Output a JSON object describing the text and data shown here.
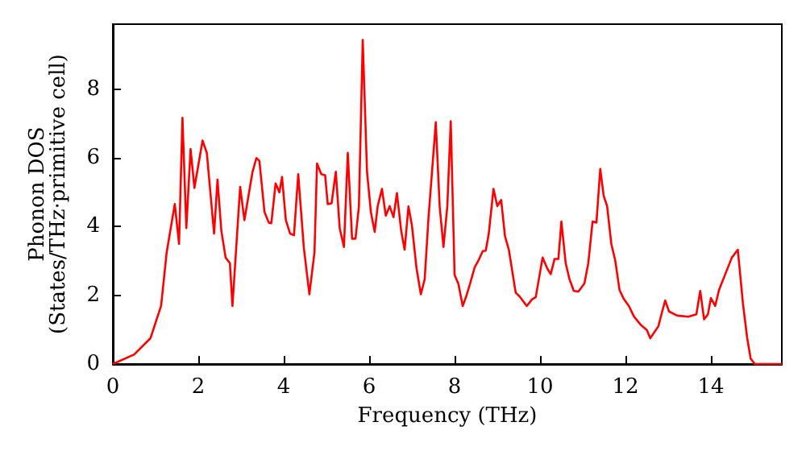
{
  "chart_data": {
    "type": "line",
    "xlabel": "Frequency (THz)",
    "ylabel": "Phonon DOS\n(States/THz·primitive cell)",
    "x": [
      0,
      0.5,
      0.88,
      1.13,
      1.26,
      1.45,
      1.55,
      1.63,
      1.72,
      1.82,
      1.91,
      2.1,
      2.2,
      2.37,
      2.45,
      2.54,
      2.64,
      2.74,
      2.8,
      2.98,
      3.08,
      3.27,
      3.36,
      3.43,
      3.55,
      3.65,
      3.71,
      3.81,
      3.9,
      3.96,
      4.05,
      4.15,
      4.24,
      4.34,
      4.47,
      4.6,
      4.72,
      4.78,
      4.88,
      4.97,
      5.03,
      5.12,
      5.22,
      5.31,
      5.41,
      5.5,
      5.6,
      5.68,
      5.76,
      5.85,
      5.95,
      6.04,
      6.13,
      6.2,
      6.3,
      6.39,
      6.48,
      6.57,
      6.65,
      6.75,
      6.83,
      6.92,
      7.0,
      7.11,
      7.21,
      7.3,
      7.39,
      7.56,
      7.65,
      7.74,
      7.83,
      7.91,
      8.0,
      8.09,
      8.19,
      8.28,
      8.36,
      8.47,
      8.56,
      8.66,
      8.73,
      8.8,
      8.91,
      9.0,
      9.09,
      9.18,
      9.27,
      9.43,
      9.52,
      9.69,
      9.81,
      9.9,
      10.06,
      10.17,
      10.25,
      10.34,
      10.43,
      10.5,
      10.6,
      10.69,
      10.79,
      10.9,
      11.04,
      11.13,
      11.23,
      11.32,
      11.41,
      11.49,
      11.57,
      11.67,
      11.76,
      11.86,
      11.95,
      12.08,
      12.2,
      12.36,
      12.5,
      12.58,
      12.77,
      12.86,
      12.93,
      13.02,
      13.21,
      13.47,
      13.66,
      13.75,
      13.84,
      13.93,
      14.0,
      14.1,
      14.19,
      14.34,
      14.49,
      14.63,
      14.75,
      14.85,
      14.93,
      15.03,
      15.66
    ],
    "values": [
      0,
      0.28,
      0.75,
      1.7,
      3.25,
      4.66,
      3.5,
      7.17,
      3.96,
      6.26,
      5.13,
      6.51,
      6.15,
      3.8,
      5.37,
      3.88,
      3.1,
      2.94,
      1.69,
      5.16,
      4.19,
      5.6,
      6.0,
      5.92,
      4.43,
      4.12,
      4.1,
      5.26,
      5.0,
      5.45,
      4.19,
      3.8,
      3.75,
      5.53,
      3.4,
      2.03,
      3.25,
      5.84,
      5.53,
      5.5,
      4.66,
      4.68,
      5.6,
      3.96,
      3.41,
      6.15,
      3.65,
      3.65,
      4.59,
      9.44,
      5.6,
      4.43,
      3.85,
      4.6,
      5.1,
      4.32,
      4.6,
      4.28,
      4.98,
      3.88,
      3.33,
      4.59,
      4.05,
      2.78,
      2.03,
      2.47,
      4.28,
      7.04,
      4.6,
      3.41,
      4.6,
      7.07,
      2.6,
      2.33,
      1.69,
      2.0,
      2.33,
      2.82,
      3.02,
      3.29,
      3.3,
      3.8,
      5.1,
      4.6,
      4.78,
      3.72,
      3.33,
      2.08,
      1.97,
      1.69,
      1.88,
      1.95,
      3.1,
      2.78,
      2.62,
      3.06,
      3.06,
      4.15,
      2.94,
      2.47,
      2.13,
      2.11,
      2.35,
      2.94,
      4.15,
      4.12,
      5.68,
      4.9,
      4.6,
      3.49,
      3.02,
      2.16,
      1.92,
      1.69,
      1.38,
      1.14,
      0.99,
      0.75,
      1.1,
      1.53,
      1.85,
      1.53,
      1.41,
      1.38,
      1.45,
      2.13,
      1.3,
      1.45,
      1.92,
      1.69,
      2.16,
      2.63,
      3.1,
      3.33,
      1.76,
      0.75,
      0.16,
      0,
      0
    ],
    "color": "#ff0000",
    "marker": "none",
    "line_style": "solid",
    "xlim": [
      0,
      15.66
    ],
    "xticks": [
      0,
      2,
      4,
      6,
      8,
      10,
      12,
      14
    ],
    "ylim": [
      0,
      9.9
    ],
    "yticks": [
      0,
      2,
      4,
      6,
      8
    ]
  }
}
